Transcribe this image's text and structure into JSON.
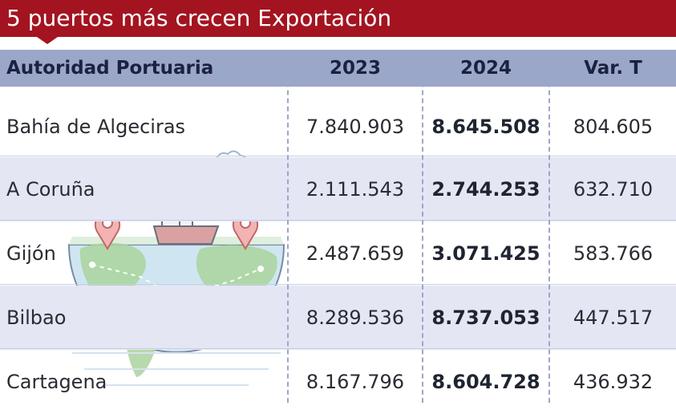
{
  "title": "5 puertos más crecen Exportación",
  "headers": [
    "Autoridad Portuaria",
    "2023",
    "2024",
    "Var. T"
  ],
  "rows": [
    {
      "port": "Bahía de Algeciras",
      "y2023": "7.840.903",
      "y2024": "8.645.508",
      "var": "804.605"
    },
    {
      "port": "A Coruña",
      "y2023": "2.111.543",
      "y2024": "2.744.253",
      "var": "632.710"
    },
    {
      "port": "Gijón",
      "y2023": "2.487.659",
      "y2024": "3.071.425",
      "var": "583.766"
    },
    {
      "port": "Bilbao",
      "y2023": "8.289.536",
      "y2024": "8.737.053",
      "var": "447.517"
    },
    {
      "port": "Cartagena",
      "y2023": "8.167.796",
      "y2024": "8.604.728",
      "var": "436.932"
    }
  ],
  "colors": {
    "title_bg": "#a31420",
    "header_bg": "#9aa7c9",
    "row_shade": "#e4e6f4"
  },
  "illustration": {
    "icons": [
      "globe-icon",
      "cargo-ship-icon",
      "location-pin-icon",
      "cloud-icon"
    ]
  }
}
